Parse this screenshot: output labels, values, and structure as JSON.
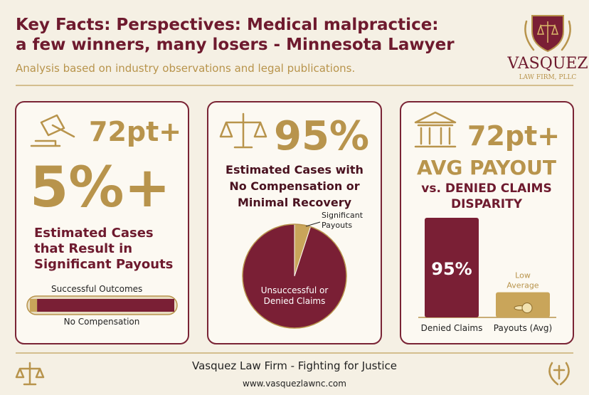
{
  "header": {
    "title_lines": [
      "Key Facts: Perspectives: Medical malpractice:",
      "a few winners, many losers - Minnesota Lawyer"
    ],
    "subtitle": "Analysis based on industry observations and legal publications.",
    "logo": {
      "name": "VASQUEZ",
      "tagline": "LAW FIRM, PLLC"
    }
  },
  "panels": [
    {
      "stat": "72pt+",
      "headline": "5%+",
      "text_lines": [
        "Estimated Cases",
        "that Result in",
        "Significant Payouts"
      ],
      "progress": {
        "segments": [
          {
            "label": "Successful Outcomes",
            "value": 5,
            "color": "#c9a55a"
          },
          {
            "label": "No Compensation",
            "value": 95,
            "color": "#7a1f35"
          }
        ]
      }
    },
    {
      "headline": "95%",
      "text_lines": [
        "Estimated Cases with",
        "No Compensation or",
        "Minimal Recovery"
      ],
      "pie": {
        "slices": [
          {
            "label_lines": [
              "Significant",
              "Payouts"
            ],
            "value": 5,
            "color": "#c9a55a"
          },
          {
            "label_lines": [
              "Unsuccessful or",
              "Denied Claims"
            ],
            "value": 95,
            "color": "#7a1f35"
          }
        ]
      }
    },
    {
      "stat": "72pt+",
      "headline": "AVG PAYOUT",
      "text_lines": [
        "vs. DENIED CLAIMS",
        "DISPARITY"
      ],
      "bars": [
        {
          "label": "Denied Claims",
          "value": 95,
          "value_label": "95%",
          "color": "#7a1f35"
        },
        {
          "label": "Payouts (Avg)",
          "value": 24,
          "annotation_lines": [
            "Low",
            "Average"
          ],
          "color": "#c9a55a"
        }
      ]
    }
  ],
  "footer": {
    "tagline": "Vasquez Law Firm - Fighting for Justice",
    "url": "www.vasquezlawnc.com"
  }
}
